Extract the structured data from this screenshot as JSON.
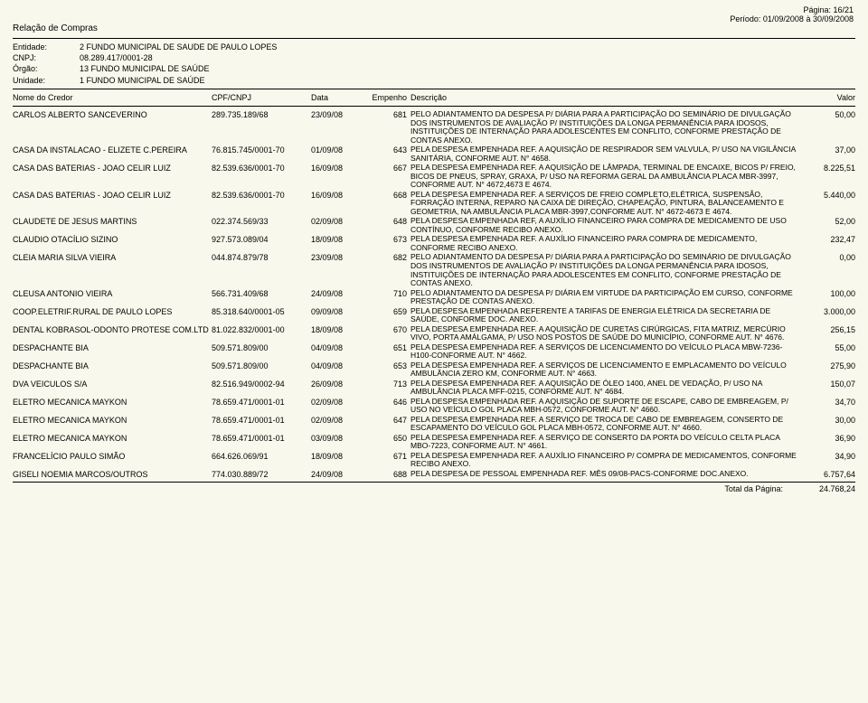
{
  "header": {
    "page_label": "Página: 16/21",
    "period_label": "Período:  01/09/2008  à   30/09/2008",
    "report_title": "Relação de Compras",
    "entidade_lbl": "Entidade:",
    "entidade_val": "2 FUNDO MUNICIPAL DE SAUDE DE PAULO LOPES",
    "cnpj_lbl": "CNPJ:",
    "cnpj_val": "08.289.417/0001-28",
    "orgao_lbl": "Órgão:",
    "orgao_val": "13 FUNDO MUNICIPAL DE SAÚDE",
    "unidade_lbl": "Unidade:",
    "unidade_val": "1 FUNDO MUNICIPAL DE SAÚDE"
  },
  "columns": {
    "nome": "Nome do Credor",
    "cpf": "CPF/CNPJ",
    "data": "Data",
    "empenho": "Empenho",
    "descricao": "Descrição",
    "valor": "Valor"
  },
  "rows": [
    {
      "nome": "CARLOS ALBERTO SANCEVERINO",
      "cpf": "289.735.189/68",
      "data": "23/09/08",
      "emp": "681",
      "desc": "PELO ADIANTAMENTO DA DESPESA P/ DIÁRIA PARA A PARTICIPAÇÃO DO SEMINÁRIO DE DIVULGAÇÃO DOS INSTRUMENTOS DE AVALIAÇÃO P/ INSTITUIÇÕES DA LONGA PERMANÊNCIA PARA IDOSOS, INSTITUIÇÕES DE INTERNAÇÃO PARA ADOLESCENTES EM CONFLITO, CONFORME PRESTAÇÃO DE CONTAS ANEXO.",
      "val": "50,00"
    },
    {
      "nome": "CASA DA INSTALACAO - ELIZETE C.PEREIRA",
      "cpf": "76.815.745/0001-70",
      "data": "01/09/08",
      "emp": "643",
      "desc": "PELA DESPESA EMPENHADA REF. A AQUISIÇÃO DE RESPIRADOR SEM VALVULA, P/ USO NA VIGILÂNCIA SANITÁRIA, CONFORME AUT. N° 4658.",
      "val": "37,00"
    },
    {
      "nome": "CASA DAS BATERIAS - JOAO CELIR LUIZ",
      "cpf": "82.539.636/0001-70",
      "data": "16/09/08",
      "emp": "667",
      "desc": "PELA DESPESA EMPENHADA REF. A AQUISIÇÃO DE LÂMPADA, TERMINAL DE ENCAIXE, BICOS P/ FREIO, BICOS DE PNEUS, SPRAY, GRAXA, P/ USO NA REFORMA GERAL DA AMBULÂNCIA PLACA MBR-3997, CONFORME AUT. N° 4672,4673 E 4674.",
      "val": "8.225,51"
    },
    {
      "nome": "CASA DAS BATERIAS - JOAO CELIR LUIZ",
      "cpf": "82.539.636/0001-70",
      "data": "16/09/08",
      "emp": "668",
      "desc": "PELA DESPESA EMPENHADA REF. A SERVIÇOS DE FREIO COMPLETO,ELÉTRICA, SUSPENSÃO, FORRAÇÃO INTERNA, REPARO NA CAIXA DE DIREÇÃO, CHAPEAÇÃO, PINTURA, BALANCEAMENTO E GEOMETRIA, NA AMBULÂNCIA PLACA MBR-3997,CONFORME AUT. N° 4672-4673 E 4674.",
      "val": "5.440,00"
    },
    {
      "nome": "CLAUDETE DE JESUS MARTINS",
      "cpf": "022.374.569/33",
      "data": "02/09/08",
      "emp": "648",
      "desc": "PELA DESPESA EMPENHADA REF, A AUXÍLIO FINANCEIRO PARA COMPRA DE MEDICAMENTO DE USO CONTÍNUO, CONFORME RECIBO ANEXO.",
      "val": "52,00"
    },
    {
      "nome": "CLAUDIO OTACÍLIO SIZINO",
      "cpf": "927.573.089/04",
      "data": "18/09/08",
      "emp": "673",
      "desc": "PELA DESPESA EMPENHADA REF. A AUXÍLIO FINANCEIRO PARA COMPRA DE MEDICAMENTO, CONFORME RECIBO ANEXO.",
      "val": "232,47"
    },
    {
      "nome": "CLEIA MARIA SILVA VIEIRA",
      "cpf": "044.874.879/78",
      "data": "23/09/08",
      "emp": "682",
      "desc": "PELO ADIANTAMENTO DA DESPESA P/ DIÁRIA PARA A PARTICIPAÇÃO DO SEMINÁRIO DE DIVULGAÇÃO DOS INSTRUMENTOS DE AVALIAÇÃO P/ INSTITUIÇÕES DA LONGA PERMANÊNCIA PARA IDOSOS, INSTITUIÇÕES DE INTERNAÇÃO PARA ADOLESCENTES EM CONFLITO, CONFORME PRESTAÇÃO DE CONTAS ANEXO.",
      "val": "0,00"
    },
    {
      "nome": "CLEUSA ANTONIO VIEIRA",
      "cpf": "566.731.409/68",
      "data": "24/09/08",
      "emp": "710",
      "desc": "PELO ADIANTAMENTO DA DESPESA P/ DIÁRIA EM VIRTUDE DA PARTICIPAÇÃO EM CURSO, CONFORME PRESTAÇÃO DE CONTAS ANEXO.",
      "val": "100,00"
    },
    {
      "nome": "COOP.ELETRIF.RURAL DE PAULO LOPES",
      "cpf": "85.318.640/0001-05",
      "data": "09/09/08",
      "emp": "659",
      "desc": "PELA DESPESA EMPENHADA REFERENTE A TARIFAS DE ENERGIA ELÉTRICA DA SECRETARIA DE SAÚDE, CONFORME DOC. ANEXO.",
      "val": "3.000,00"
    },
    {
      "nome": "DENTAL KOBRASOL-ODONTO PROTESE COM.LTD",
      "cpf": "81.022.832/0001-00",
      "data": "18/09/08",
      "emp": "670",
      "desc": "PELA DESPESA EMPENHADA REF. A AQUISIÇÃO DE CURETAS CIRÚRGICAS, FITA MATRIZ, MERCÚRIO VIVO, PORTA AMÁLGAMA, P/ USO NOS POSTOS DE SAÚDE DO MUNICÍPIO, CONFORME AUT. N° 4676.",
      "val": "256,15"
    },
    {
      "nome": "DESPACHANTE BIA",
      "cpf": "509.571.809/00",
      "data": "04/09/08",
      "emp": "651",
      "desc": "PELA DESPESA EMPENHADA REF. A SERVIÇOS DE LICENCIAMENTO DO VEÍCULO PLACA MBW-7236-H100-CONFORME AUT. N° 4662.",
      "val": "55,00"
    },
    {
      "nome": "DESPACHANTE BIA",
      "cpf": "509.571.809/00",
      "data": "04/09/08",
      "emp": "653",
      "desc": "PELA DESPESA EMPENHADA REF. A SERVIÇOS DE LICENCIAMENTO E EMPLACAMENTO DO VEÍCULO AMBULÂNCIA ZERO KM, CONFORME AUT. N° 4663.",
      "val": "275,90"
    },
    {
      "nome": "DVA VEICULOS S/A",
      "cpf": "82.516.949/0002-94",
      "data": "26/09/08",
      "emp": "713",
      "desc": "PELA DESPESA EMPENHADA REF. A AQUISIÇÃO DE ÓLEO 1400, ANEL DE VEDAÇÃO, P/ USO NA AMBULÂNCIA PLACA MFF-0215, CONFORME AUT. N° 4684.",
      "val": "150,07"
    },
    {
      "nome": "ELETRO MECANICA MAYKON",
      "cpf": "78.659.471/0001-01",
      "data": "02/09/08",
      "emp": "646",
      "desc": "PELA DESPESA EMPENHADA REF. A AQUISIÇÃO DE SUPORTE DE ESCAPE, CABO DE EMBREAGEM, P/ USO NO VEÍCULO GOL PLACA MBH-0572, CONFORME AUT. N° 4660.",
      "val": "34,70"
    },
    {
      "nome": "ELETRO MECANICA MAYKON",
      "cpf": "78.659.471/0001-01",
      "data": "02/09/08",
      "emp": "647",
      "desc": "PELA DESPESA EMPENHADA REF. A SERVIÇO DE TROCA DE CABO DE EMBREAGEM, CONSERTO DE ESCAPAMENTO DO VEÍCULO GOL PLACA MBH-0572, CONFORME AUT. N° 4660.",
      "val": "30,00"
    },
    {
      "nome": "ELETRO MECANICA MAYKON",
      "cpf": "78.659.471/0001-01",
      "data": "03/09/08",
      "emp": "650",
      "desc": "PELA DESPESA EMPENHADA REF. A SERVIÇO DE CONSERTO DA PORTA DO VEÍCULO CELTA PLACA MBO-7223, CONFORME AUT. N° 4661.",
      "val": "36,90"
    },
    {
      "nome": "FRANCELÍCIO PAULO SIMÃO",
      "cpf": "664.626.069/91",
      "data": "18/09/08",
      "emp": "671",
      "desc": "PELA DESPESA EMPENHADA REF. A AUXÍLIO FINANCEIRO P/ COMPRA DE MEDICAMENTOS, CONFORME RECIBO ANEXO.",
      "val": "34,90"
    },
    {
      "nome": "GISELI NOEMIA MARCOS/OUTROS",
      "cpf": "774.030.889/72",
      "data": "24/09/08",
      "emp": "688",
      "desc": "PELA DESPESA DE PESSOAL EMPENHADA REF. MÊS 09/08-PACS-CONFORME DOC.ANEXO.",
      "val": "6.757,64"
    }
  ],
  "footer": {
    "label": "Total da Página:",
    "total": "24.768,24"
  }
}
